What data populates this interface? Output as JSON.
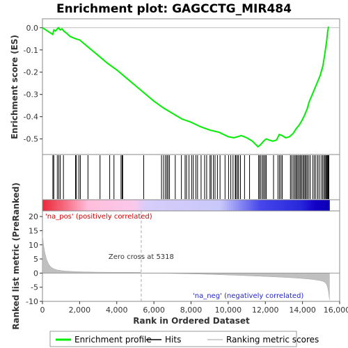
{
  "chart_data": {
    "type": "line",
    "title": "Enrichment plot: GAGCCTG_MIR484",
    "xlabel": "Rank in Ordered Dataset",
    "ylabel_top": "Enrichment score (ES)",
    "ylabel_bottom": "Ranked list metric (PreRanked)",
    "xlim": [
      0,
      16000
    ],
    "x_ticks": [
      0,
      2000,
      4000,
      6000,
      8000,
      10000,
      12000,
      14000,
      16000
    ],
    "x_tick_labels": [
      "0",
      "2,000",
      "4,000",
      "6,000",
      "8,000",
      "10,000",
      "12,000",
      "14,000",
      "16,000"
    ],
    "es_ylim": [
      -0.57,
      0.04
    ],
    "es_ticks": [
      0.0,
      -0.1,
      -0.2,
      -0.3,
      -0.4,
      -0.5
    ],
    "es_tick_labels": [
      "0.0",
      "-0.1",
      "-0.2",
      "-0.3",
      "-0.4",
      "-0.5"
    ],
    "metric_ylim": [
      -10,
      22
    ],
    "metric_ticks": [
      20,
      15,
      10,
      5,
      0,
      -5,
      -10
    ],
    "metric_tick_labels": [
      "20",
      "15",
      "10",
      "5",
      "0",
      "-5",
      "-10"
    ],
    "series": [
      {
        "name": "Enrichment profile",
        "color": "#00ee00",
        "x": [
          0,
          550,
          620,
          700,
          800,
          860,
          950,
          1050,
          1150,
          1300,
          1500,
          1800,
          2000,
          2500,
          3000,
          3500,
          4000,
          4500,
          5000,
          5500,
          6000,
          6500,
          7000,
          7500,
          8000,
          8500,
          9000,
          9500,
          10000,
          10300,
          10500,
          10700,
          11000,
          11300,
          11600,
          11750,
          11900,
          12050,
          12200,
          12400,
          12600,
          12750,
          12900,
          13100,
          13300,
          13500,
          13650,
          13800,
          13950,
          14100,
          14250,
          14350,
          14500,
          14650,
          14800,
          14950,
          15100,
          15200,
          15300,
          15350,
          15400
        ],
        "values": [
          0.0,
          -0.03,
          -0.01,
          -0.015,
          -0.005,
          0.0,
          -0.01,
          -0.005,
          -0.015,
          -0.025,
          -0.04,
          -0.05,
          -0.055,
          -0.09,
          -0.125,
          -0.16,
          -0.19,
          -0.225,
          -0.26,
          -0.295,
          -0.33,
          -0.36,
          -0.385,
          -0.41,
          -0.425,
          -0.445,
          -0.46,
          -0.47,
          -0.49,
          -0.495,
          -0.49,
          -0.485,
          -0.495,
          -0.51,
          -0.535,
          -0.525,
          -0.51,
          -0.5,
          -0.505,
          -0.51,
          -0.505,
          -0.48,
          -0.485,
          -0.495,
          -0.49,
          -0.475,
          -0.455,
          -0.44,
          -0.42,
          -0.395,
          -0.365,
          -0.335,
          -0.305,
          -0.275,
          -0.245,
          -0.215,
          -0.17,
          -0.12,
          -0.06,
          -0.02,
          0.005
        ]
      }
    ],
    "hits": [
      560,
      610,
      800,
      880,
      960,
      1130,
      1780,
      1830,
      1960,
      2040,
      2450,
      3100,
      3620,
      3850,
      4230,
      4290,
      4320,
      5450,
      6410,
      6520,
      6620,
      6700,
      6760,
      6840,
      7150,
      7480,
      7680,
      7760,
      7890,
      8030,
      8120,
      8260,
      8350,
      8540,
      8730,
      8840,
      9020,
      9080,
      9200,
      9290,
      9420,
      9560,
      9830,
      10020,
      10140,
      10260,
      10380,
      10420,
      10500,
      10560,
      10660,
      10880,
      11150,
      11640,
      11700,
      11770,
      11860,
      11920,
      11990,
      12050,
      12440,
      12680,
      12760,
      12840,
      12910,
      13350,
      13420,
      13500,
      13580,
      13640,
      13700,
      13760,
      13830,
      13890,
      13950,
      14020,
      14080,
      14140,
      14200,
      14260,
      14340,
      14420,
      14560,
      14640,
      14720,
      14820,
      14900,
      15000,
      15080,
      15150,
      15210,
      15260,
      15300,
      15340,
      15380,
      15420
    ],
    "zero_cross_label": "Zero cross at 5318",
    "zero_cross": 5318,
    "pos_label": "'na_pos' (positively correlated)",
    "neg_label": "'na_neg' (negatively correlated)",
    "n_ranks": 15450,
    "legend": [
      {
        "label": "Enrichment profile",
        "color": "#00ee00"
      },
      {
        "label": "Hits",
        "color": "#000000"
      },
      {
        "label": "Ranking metric scores",
        "color": "#c0c0c0"
      }
    ],
    "colors": {
      "profile": "#00ee00",
      "pos_text": "#cc0000",
      "neg_text": "#2222cc",
      "metric_fill": "#c0c0c0"
    }
  }
}
